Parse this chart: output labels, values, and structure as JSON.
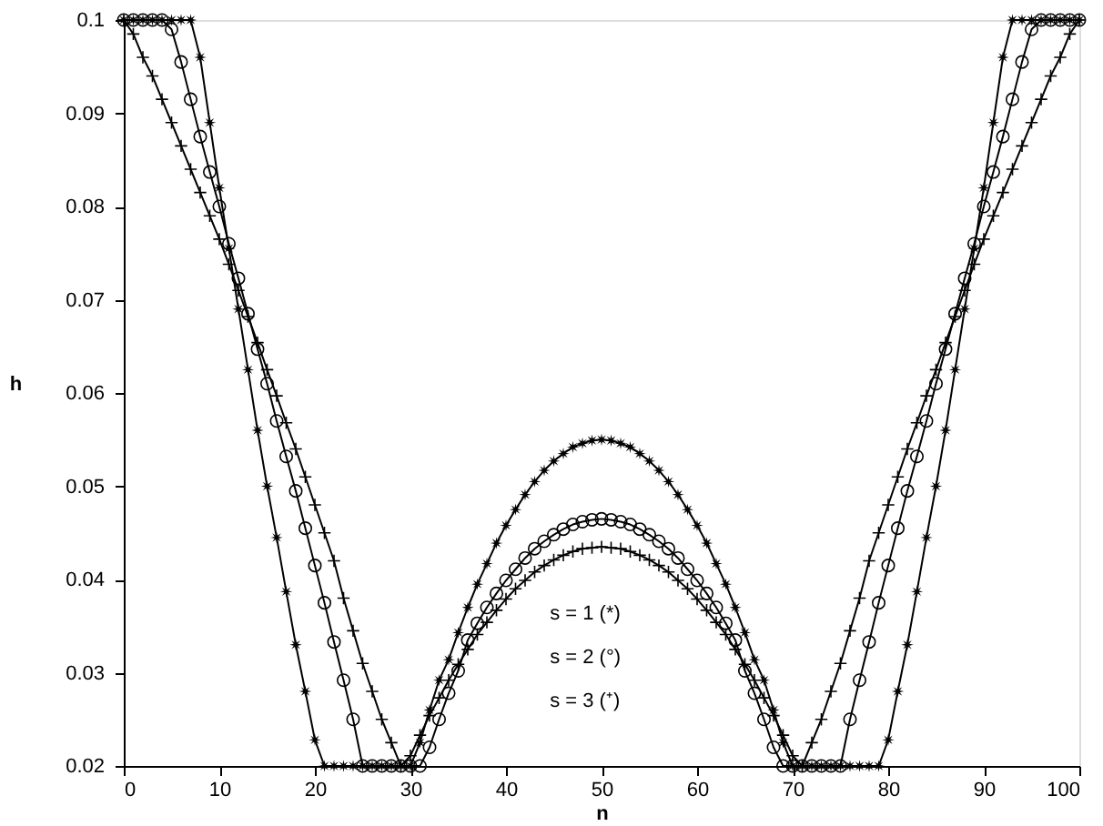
{
  "chart_data": {
    "type": "line",
    "xlabel": "n",
    "ylabel": "h",
    "xlim": [
      0,
      100
    ],
    "ylim": [
      0.02,
      0.1
    ],
    "xticks": [
      0,
      10,
      20,
      30,
      40,
      50,
      60,
      70,
      80,
      90,
      100
    ],
    "yticks": [
      0.02,
      0.03,
      0.04,
      0.05,
      0.06,
      0.07,
      0.08,
      0.09,
      0.1
    ],
    "grid": false,
    "line_style": "solid",
    "annotations": [
      "s = 1 (*)",
      "s = 2 (°)",
      "s = 3 (⁺)"
    ],
    "x": [
      0,
      1,
      2,
      3,
      4,
      5,
      6,
      7,
      8,
      9,
      10,
      11,
      12,
      13,
      14,
      15,
      16,
      17,
      18,
      19,
      20,
      21,
      22,
      23,
      24,
      25,
      26,
      27,
      28,
      29,
      30,
      31,
      32,
      33,
      34,
      35,
      36,
      37,
      38,
      39,
      40,
      41,
      42,
      43,
      44,
      45,
      46,
      47,
      48,
      49,
      50,
      51,
      52,
      53,
      54,
      55,
      56,
      57,
      58,
      59,
      60,
      61,
      62,
      63,
      64,
      65,
      66,
      67,
      68,
      69,
      70,
      71,
      72,
      73,
      74,
      75,
      76,
      77,
      78,
      79,
      80,
      81,
      82,
      83,
      84,
      85,
      86,
      87,
      88,
      89,
      90,
      91,
      92,
      93,
      94,
      95,
      96,
      97,
      98,
      99,
      100
    ],
    "series": [
      {
        "color": "#000000",
        "marker": "star",
        "values": [
          0.1,
          0.1,
          0.1,
          0.1,
          0.1,
          0.1,
          0.1,
          0.1,
          0.096,
          0.089,
          0.082,
          0.0755,
          0.069,
          0.0625,
          0.056,
          0.05,
          0.0445,
          0.0387,
          0.033,
          0.028,
          0.0228,
          0.02,
          0.02,
          0.02,
          0.02,
          0.02,
          0.02,
          0.02,
          0.02,
          0.02,
          0.02,
          0.0225,
          0.026,
          0.0292,
          0.0314,
          0.0343,
          0.037,
          0.0395,
          0.0417,
          0.0439,
          0.0458,
          0.0475,
          0.0491,
          0.0505,
          0.0517,
          0.0527,
          0.0535,
          0.0542,
          0.0546,
          0.0549,
          0.055,
          0.0549,
          0.0546,
          0.0542,
          0.0535,
          0.0527,
          0.0517,
          0.0505,
          0.0491,
          0.0475,
          0.0458,
          0.0439,
          0.0417,
          0.0395,
          0.037,
          0.0343,
          0.0314,
          0.0292,
          0.026,
          0.0225,
          0.02,
          0.02,
          0.02,
          0.02,
          0.02,
          0.02,
          0.02,
          0.02,
          0.02,
          0.02,
          0.0228,
          0.028,
          0.033,
          0.0387,
          0.0445,
          0.05,
          0.056,
          0.0625,
          0.069,
          0.0755,
          0.082,
          0.089,
          0.096,
          0.1,
          0.1,
          0.1,
          0.1,
          0.1,
          0.1,
          0.1,
          0.1
        ]
      },
      {
        "color": "#000000",
        "marker": "circle",
        "values": [
          0.1,
          0.1,
          0.1,
          0.1,
          0.1,
          0.099,
          0.0955,
          0.0915,
          0.0875,
          0.0837,
          0.08,
          0.076,
          0.0723,
          0.0685,
          0.0647,
          0.061,
          0.057,
          0.0532,
          0.0495,
          0.0455,
          0.0415,
          0.0375,
          0.0333,
          0.0292,
          0.025,
          0.02,
          0.02,
          0.02,
          0.02,
          0.02,
          0.02,
          0.02,
          0.022,
          0.025,
          0.0278,
          0.0302,
          0.0335,
          0.0353,
          0.037,
          0.0385,
          0.0399,
          0.0411,
          0.0423,
          0.0433,
          0.0441,
          0.0448,
          0.0454,
          0.0459,
          0.0462,
          0.0464,
          0.0465,
          0.0464,
          0.0462,
          0.0459,
          0.0454,
          0.0448,
          0.0441,
          0.0433,
          0.0423,
          0.0411,
          0.0399,
          0.0385,
          0.037,
          0.0353,
          0.0335,
          0.0302,
          0.0278,
          0.025,
          0.022,
          0.02,
          0.02,
          0.02,
          0.02,
          0.02,
          0.02,
          0.02,
          0.025,
          0.0292,
          0.0333,
          0.0375,
          0.0415,
          0.0455,
          0.0495,
          0.0532,
          0.057,
          0.061,
          0.0647,
          0.0685,
          0.0723,
          0.076,
          0.08,
          0.0837,
          0.0875,
          0.0915,
          0.0955,
          0.099,
          0.1,
          0.1,
          0.1,
          0.1,
          0.1
        ]
      },
      {
        "color": "#000000",
        "marker": "cross",
        "values": [
          0.1,
          0.0985,
          0.096,
          0.094,
          0.0915,
          0.089,
          0.0865,
          0.084,
          0.0815,
          0.079,
          0.0765,
          0.0738,
          0.071,
          0.0682,
          0.0654,
          0.0625,
          0.0597,
          0.0568,
          0.054,
          0.051,
          0.048,
          0.045,
          0.042,
          0.038,
          0.0345,
          0.031,
          0.028,
          0.025,
          0.0225,
          0.02,
          0.0211,
          0.0233,
          0.0254,
          0.0273,
          0.0292,
          0.0309,
          0.0325,
          0.0341,
          0.0354,
          0.0367,
          0.0379,
          0.039,
          0.0399,
          0.0408,
          0.0415,
          0.0421,
          0.0426,
          0.043,
          0.0433,
          0.0434,
          0.0435,
          0.0434,
          0.0433,
          0.043,
          0.0426,
          0.0421,
          0.0415,
          0.0408,
          0.0399,
          0.039,
          0.0379,
          0.0367,
          0.0354,
          0.0341,
          0.0325,
          0.0309,
          0.0292,
          0.0273,
          0.0254,
          0.0233,
          0.0211,
          0.02,
          0.0225,
          0.025,
          0.028,
          0.031,
          0.0345,
          0.038,
          0.042,
          0.045,
          0.048,
          0.051,
          0.054,
          0.0568,
          0.0597,
          0.0625,
          0.0654,
          0.0682,
          0.071,
          0.0738,
          0.0765,
          0.079,
          0.0815,
          0.084,
          0.0865,
          0.089,
          0.0915,
          0.094,
          0.096,
          0.0985,
          0.1
        ]
      }
    ]
  }
}
